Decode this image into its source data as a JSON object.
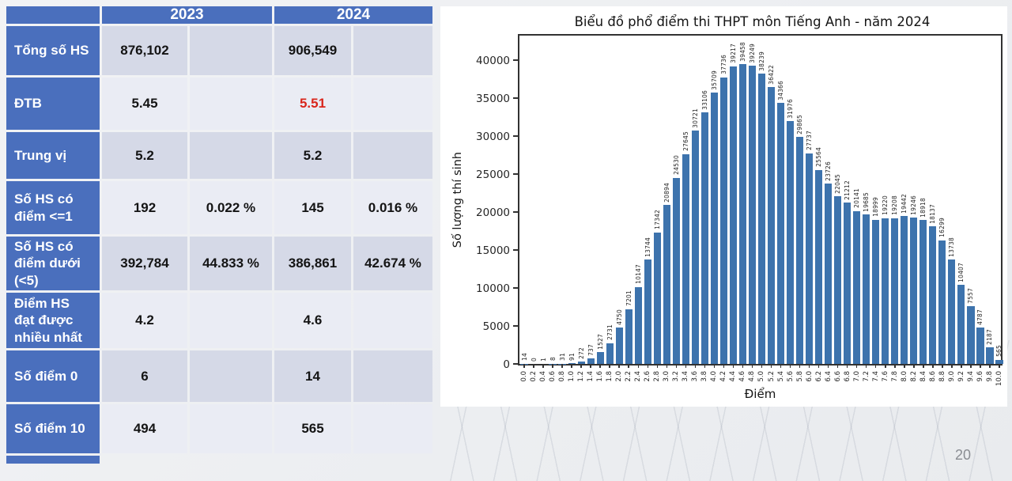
{
  "table": {
    "header": {
      "col2023": "2023",
      "col2024": "2024"
    },
    "rows": [
      {
        "label": "Tổng số HS",
        "cells": [
          "876,102",
          "",
          "906,549",
          ""
        ],
        "red_cell": null
      },
      {
        "label": "ĐTB",
        "cells": [
          "5.45",
          "",
          "5.51",
          ""
        ],
        "red_cell": 2
      },
      {
        "label": "Trung vị",
        "cells": [
          "5.2",
          "",
          "5.2",
          ""
        ],
        "red_cell": null
      },
      {
        "label": "Số HS có điểm <=1",
        "cells": [
          "192",
          "0.022 %",
          "145",
          "0.016 %"
        ],
        "red_cell": null
      },
      {
        "label": "Số HS có điểm dưới (<5)",
        "cells": [
          "392,784",
          "44.833 %",
          "386,861",
          "42.674 %"
        ],
        "red_cell": null
      },
      {
        "label": "Điểm HS đạt được nhiều nhất",
        "cells": [
          "4.2",
          "",
          "4.6",
          ""
        ],
        "red_cell": null
      },
      {
        "label": "Số điểm 0",
        "cells": [
          "6",
          "",
          "14",
          ""
        ],
        "red_cell": null
      },
      {
        "label": "Số điểm 10",
        "cells": [
          "494",
          "",
          "565",
          ""
        ],
        "red_cell": null
      }
    ]
  },
  "chart_data": {
    "type": "bar",
    "title": "Biểu đồ phổ điểm thi THPT môn Tiếng Anh - năm 2024",
    "xlabel": "Điểm",
    "ylabel": "Số lượng thí sinh",
    "categories": [
      "0.0",
      "0.2",
      "0.4",
      "0.6",
      "0.8",
      "1.0",
      "1.2",
      "1.4",
      "1.6",
      "1.8",
      "2.0",
      "2.2",
      "2.4",
      "2.6",
      "2.8",
      "3.0",
      "3.2",
      "3.4",
      "3.6",
      "3.8",
      "4.0",
      "4.2",
      "4.4",
      "4.6",
      "4.8",
      "5.0",
      "5.2",
      "5.4",
      "5.6",
      "5.8",
      "6.0",
      "6.2",
      "6.4",
      "6.6",
      "6.8",
      "7.0",
      "7.2",
      "7.4",
      "7.6",
      "7.8",
      "8.0",
      "8.2",
      "8.4",
      "8.6",
      "8.8",
      "9.0",
      "9.2",
      "9.4",
      "9.6",
      "9.8",
      "10.0"
    ],
    "values": [
      14,
      0,
      1,
      8,
      31,
      91,
      272,
      737,
      1527,
      2731,
      4750,
      7201,
      10147,
      13744,
      17342,
      20894,
      24530,
      27645,
      30721,
      33106,
      35709,
      37736,
      39217,
      39458,
      39249,
      38239,
      36422,
      34366,
      31976,
      29865,
      27737,
      25564,
      23726,
      22045,
      21212,
      20141,
      19685,
      18999,
      19220,
      19208,
      19442,
      19246,
      18918,
      18137,
      16299,
      13738,
      10407,
      7557,
      4787,
      2187,
      565
    ],
    "yticks": [
      0,
      5000,
      10000,
      15000,
      20000,
      25000,
      30000,
      35000,
      40000
    ],
    "ylim": [
      0,
      43700
    ],
    "grid": false,
    "legend": null,
    "bar_color": "#3d73ad",
    "data_labels": true,
    "tick_rotation": 90
  },
  "page": {
    "number": "20",
    "accent_blue": "#4a6fbd",
    "row_dark": "#d5d9e7",
    "row_light": "#eaecf4",
    "highlight_red": "#d9261c"
  }
}
